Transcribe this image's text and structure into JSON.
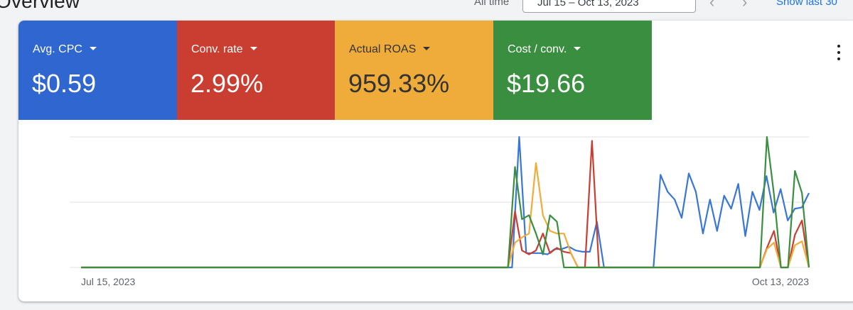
{
  "header": {
    "title": "Overview",
    "all_time_label": "All time",
    "date_range": "Jul 15 – Oct 13, 2023",
    "show_last_label": "Show last 30"
  },
  "tiles": [
    {
      "label": "Avg. CPC",
      "value": "$0.59",
      "color": "#2f66d0"
    },
    {
      "label": "Conv. rate",
      "value": "2.99%",
      "color": "#c93e31"
    },
    {
      "label": "Actual ROAS",
      "value": "959.33%",
      "color": "#f0ac3a"
    },
    {
      "label": "Cost / conv.",
      "value": "$19.66",
      "color": "#3a8e3f"
    }
  ],
  "chart_data": {
    "type": "line",
    "x_labels": [
      "Jul 15, 2023",
      "Oct 13, 2023"
    ],
    "grid": true,
    "note_units": "relative (0-100), no y-axis labels shown",
    "series": [
      {
        "color": "#3a76d6",
        "values": [
          0,
          0,
          0,
          0,
          0,
          0,
          0,
          0,
          0,
          0,
          0,
          0,
          0,
          0,
          0,
          0,
          0,
          0,
          0,
          0,
          0,
          0,
          0,
          0,
          0,
          0,
          0,
          0,
          0,
          0,
          0,
          0,
          0,
          0,
          0,
          0,
          0,
          0,
          0,
          0,
          0,
          0,
          0,
          0,
          0,
          0,
          0,
          0,
          0,
          0,
          0,
          0,
          0,
          0,
          0,
          0,
          0,
          0,
          0,
          0,
          0,
          0,
          100,
          11,
          11,
          11,
          10,
          14,
          14,
          16,
          13,
          12,
          12,
          35,
          0,
          0,
          0,
          0,
          0,
          0,
          0,
          0,
          71,
          58,
          52,
          38,
          72,
          58,
          26,
          52,
          28,
          55,
          45,
          64,
          24,
          58,
          44,
          70,
          42,
          60,
          36,
          45,
          46,
          57
        ]
      },
      {
        "color": "#c93e31",
        "values": [
          0,
          0,
          0,
          0,
          0,
          0,
          0,
          0,
          0,
          0,
          0,
          0,
          0,
          0,
          0,
          0,
          0,
          0,
          0,
          0,
          0,
          0,
          0,
          0,
          0,
          0,
          0,
          0,
          0,
          0,
          0,
          0,
          0,
          0,
          0,
          0,
          0,
          0,
          0,
          0,
          0,
          0,
          0,
          0,
          0,
          0,
          0,
          0,
          0,
          0,
          0,
          0,
          0,
          0,
          0,
          0,
          0,
          0,
          0,
          0,
          0,
          0,
          43,
          13,
          10,
          13,
          26,
          11,
          15,
          12,
          11,
          0,
          0,
          97,
          0,
          0,
          0,
          0,
          0,
          0,
          0,
          0,
          0,
          0,
          0,
          0,
          0,
          0,
          0,
          0,
          0,
          0,
          0,
          0,
          0,
          0,
          0,
          0,
          15,
          28,
          0,
          0,
          25,
          36,
          0
        ]
      },
      {
        "color": "#f0ac3a",
        "values": [
          0,
          0,
          0,
          0,
          0,
          0,
          0,
          0,
          0,
          0,
          0,
          0,
          0,
          0,
          0,
          0,
          0,
          0,
          0,
          0,
          0,
          0,
          0,
          0,
          0,
          0,
          0,
          0,
          0,
          0,
          0,
          0,
          0,
          0,
          0,
          0,
          0,
          0,
          0,
          0,
          0,
          0,
          0,
          0,
          0,
          0,
          0,
          0,
          0,
          0,
          0,
          0,
          0,
          0,
          0,
          0,
          0,
          0,
          0,
          0,
          0,
          0,
          19,
          23,
          26,
          80,
          40,
          28,
          26,
          26,
          11,
          0,
          0,
          0,
          0,
          0,
          0,
          0,
          0,
          0,
          0,
          0,
          0,
          0,
          0,
          0,
          0,
          0,
          0,
          0,
          0,
          0,
          0,
          0,
          0,
          0,
          0,
          0,
          14,
          19,
          0,
          0,
          17,
          20,
          0
        ]
      },
      {
        "color": "#3a8e3f",
        "values": [
          0,
          0,
          0,
          0,
          0,
          0,
          0,
          0,
          0,
          0,
          0,
          0,
          0,
          0,
          0,
          0,
          0,
          0,
          0,
          0,
          0,
          0,
          0,
          0,
          0,
          0,
          0,
          0,
          0,
          0,
          0,
          0,
          0,
          0,
          0,
          0,
          0,
          0,
          0,
          0,
          0,
          0,
          0,
          0,
          0,
          0,
          0,
          0,
          0,
          0,
          0,
          0,
          0,
          0,
          0,
          0,
          0,
          0,
          0,
          0,
          0,
          0,
          77,
          37,
          40,
          26,
          10,
          40,
          35,
          0,
          0,
          0,
          0,
          0,
          0,
          0,
          0,
          0,
          0,
          0,
          0,
          0,
          0,
          0,
          0,
          0,
          0,
          0,
          0,
          0,
          0,
          0,
          0,
          0,
          0,
          0,
          0,
          0,
          100,
          56,
          0,
          0,
          74,
          57,
          0
        ]
      }
    ]
  }
}
